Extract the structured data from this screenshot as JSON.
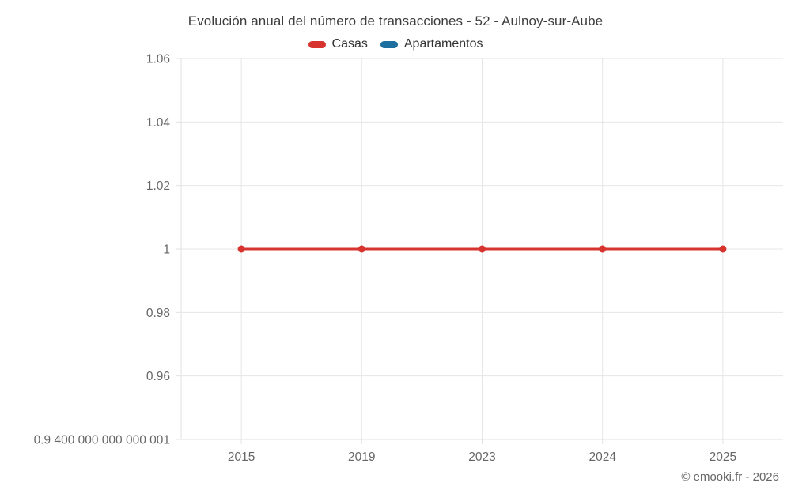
{
  "header": {
    "title": "Evolución anual del número de transacciones - 52 - Aulnoy-sur-Aube"
  },
  "chart_data": {
    "type": "line",
    "title": "Evolución anual del número de transacciones - 52 - Aulnoy-sur-Aube",
    "categories": [
      "2015",
      "2019",
      "2023",
      "2024",
      "2025"
    ],
    "series": [
      {
        "name": "Casas",
        "color": "#d7342f",
        "values": [
          1,
          1,
          1,
          1,
          1
        ]
      },
      {
        "name": "Apartamentos",
        "color": "#1c6f9e",
        "values": []
      }
    ],
    "xlabel": "",
    "ylabel": "",
    "ylim": [
      0.9400000000000001,
      1.06
    ],
    "yticks": {
      "values": [
        1.06,
        1.04,
        1.02,
        1,
        0.98,
        0.96,
        0.9400000000000001
      ],
      "labels": [
        "1.06",
        "1.04",
        "1.02",
        "1",
        "0.98",
        "0.96",
        "0.9 400 000 000 000 001"
      ]
    },
    "grid": true,
    "legend_position": "top",
    "colors": {
      "grid_line": "#e6e6e6",
      "axis_line": "#e2e2e2",
      "tick_label": "#666666",
      "title_text": "#3d3d3d",
      "legend_text": "#333333"
    }
  },
  "footer": {
    "credits": "© emooki.fr - 2026"
  }
}
